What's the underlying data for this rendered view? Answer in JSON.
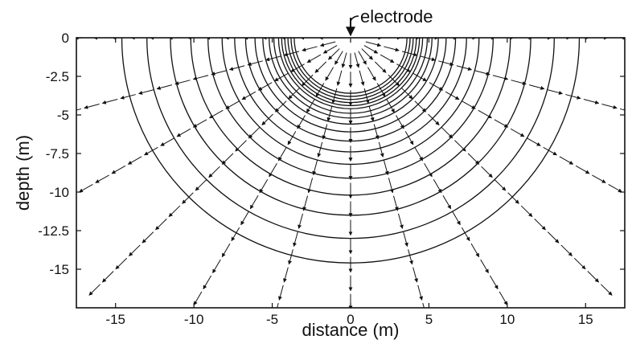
{
  "chart_data": {
    "type": "vector-field",
    "xlabel": "distance (m)",
    "ylabel": "depth (m)",
    "xlim": [
      -17.5,
      17.5
    ],
    "ylim": [
      -17.5,
      0
    ],
    "x_ticks": [
      -15,
      -10,
      -5,
      0,
      5,
      10,
      15
    ],
    "x_tick_labels": [
      "-15",
      "-10",
      "-5",
      "0",
      "5",
      "10",
      "15"
    ],
    "y_ticks": [
      0,
      -2.5,
      -5,
      -7.5,
      -10,
      -12.5,
      -15
    ],
    "y_tick_labels": [
      "0",
      "-2.5",
      "-5",
      "-7.5",
      "-10",
      "-12.5",
      "-15"
    ],
    "source": {
      "label": "electrode",
      "x": 0,
      "y": 0
    },
    "equipotential_radii": [
      3.6,
      3.8,
      4.0,
      4.2,
      4.4,
      4.6,
      4.9,
      5.2,
      5.6,
      6.1,
      6.7,
      7.4,
      8.2,
      9.1,
      10.2,
      11.5,
      13.0,
      14.6
    ],
    "field_vectors": {
      "description": "radial current-density arrows pointing away from the electrode",
      "angle_step_deg": 15,
      "radii": [
        1.2,
        2.4,
        3.6,
        4.8,
        6.0,
        7.2,
        8.4,
        9.6,
        10.8,
        12.0,
        13.2,
        14.4,
        15.6,
        16.8,
        18.0,
        19.2,
        20.4,
        21.6,
        22.8
      ]
    }
  },
  "colors": {
    "ink": "#111111",
    "background": "#ffffff"
  }
}
